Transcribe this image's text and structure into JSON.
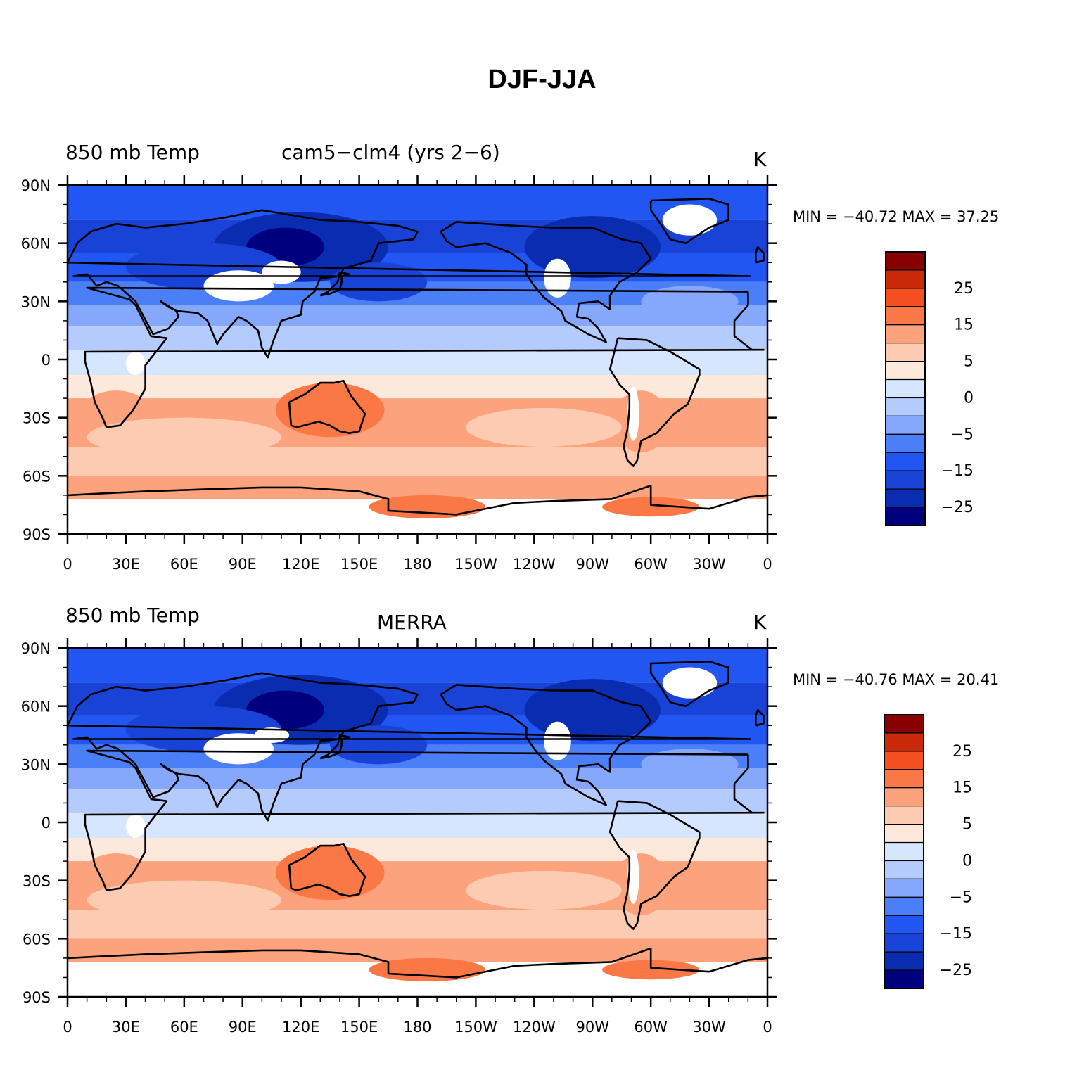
{
  "title": "DJF-JJA",
  "colors": {
    "levels": [
      "#00007f",
      "#0a2cb0",
      "#1843d6",
      "#2156f2",
      "#4b7ff8",
      "#86a8fc",
      "#b4cbfd",
      "#d5e6fe",
      "#fde9dc",
      "#fdcbb2",
      "#fca27d",
      "#fa7845",
      "#f44f20",
      "#c92a0a",
      "#880000"
    ],
    "missing": "#ffffff",
    "coast": "#000000"
  },
  "panels": [
    {
      "id": "model",
      "left_label": "850 mb Temp",
      "center_label": "cam5−clm4 (yrs 2−6)",
      "units": "K",
      "stats": "MIN = −40.72  MAX =   37.25"
    },
    {
      "id": "obs",
      "left_label": "850 mb Temp",
      "center_label": "MERRA",
      "units": "K",
      "stats": "MIN = −40.76  MAX =   20.41"
    }
  ],
  "lat_ticks": [
    "90N",
    "60N",
    "30N",
    "0",
    "30S",
    "60S",
    "90S"
  ],
  "lon_ticks": [
    "0",
    "30E",
    "60E",
    "90E",
    "120E",
    "150E",
    "180",
    "150W",
    "120W",
    "90W",
    "60W",
    "30W",
    "0"
  ],
  "colorbar_labels": [
    "25",
    "15",
    "5",
    "0",
    "−5",
    "−15",
    "−25"
  ],
  "chart_data": [
    {
      "type": "heatmap",
      "name": "850 mb Temp cam5-clm4 (yrs 2-6)",
      "units": "K",
      "min": -40.72,
      "max": 37.25,
      "contour_levels": [
        -30,
        -25,
        -20,
        -15,
        -10,
        -5,
        -2.5,
        0,
        2.5,
        5,
        10,
        15,
        20,
        25,
        30
      ],
      "x_range": [
        0,
        360
      ],
      "y_range": [
        -90,
        90
      ],
      "x_ticks": [
        "0",
        "30E",
        "60E",
        "90E",
        "120E",
        "150E",
        "180",
        "150W",
        "120W",
        "90W",
        "60W",
        "30W",
        "0"
      ],
      "y_ticks": [
        "90N",
        "60N",
        "30N",
        "0",
        "30S",
        "60S",
        "90S"
      ]
    },
    {
      "type": "heatmap",
      "name": "850 mb Temp MERRA",
      "units": "K",
      "min": -40.76,
      "max": 20.41,
      "contour_levels": [
        -30,
        -25,
        -20,
        -15,
        -10,
        -5,
        -2.5,
        0,
        2.5,
        5,
        10,
        15,
        20,
        25,
        30
      ],
      "x_range": [
        0,
        360
      ],
      "y_range": [
        -90,
        90
      ],
      "x_ticks": [
        "0",
        "30E",
        "60E",
        "90E",
        "120E",
        "150E",
        "180",
        "150W",
        "120W",
        "90W",
        "60W",
        "30W",
        "0"
      ],
      "y_ticks": [
        "90N",
        "60N",
        "30N",
        "0",
        "30S",
        "60S",
        "90S"
      ]
    }
  ]
}
